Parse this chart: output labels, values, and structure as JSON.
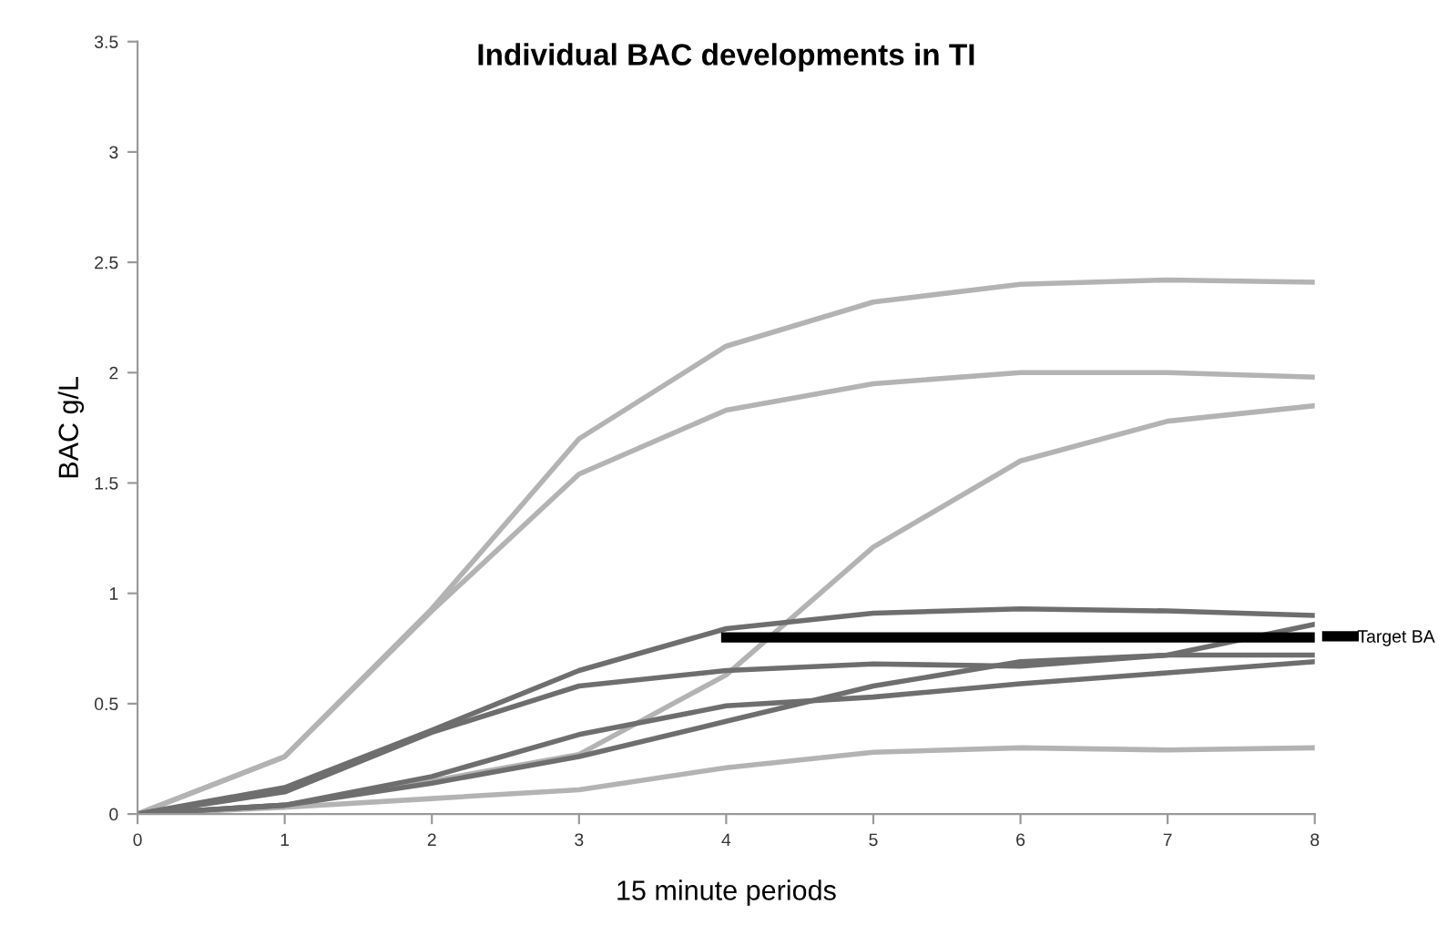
{
  "chart_data": {
    "type": "line",
    "title": "Individual BAC developments in TI",
    "xlabel": "15 minute periods",
    "ylabel": "BAC g/L",
    "x": [
      0,
      1,
      2,
      3,
      4,
      5,
      6,
      7,
      8
    ],
    "series": [
      {
        "color": "#b3b3b3",
        "values": [
          0,
          0.26,
          0.93,
          1.7,
          2.12,
          2.32,
          2.4,
          2.42,
          2.41
        ]
      },
      {
        "color": "#b3b3b3",
        "values": [
          0,
          0.26,
          0.92,
          1.54,
          1.83,
          1.95,
          2.0,
          2.0,
          1.98
        ]
      },
      {
        "color": "#b3b3b3",
        "values": [
          0,
          0.04,
          0.15,
          0.27,
          0.63,
          1.21,
          1.6,
          1.78,
          1.85
        ]
      },
      {
        "color": "#b3b3b3",
        "values": [
          0,
          0.03,
          0.07,
          0.11,
          0.21,
          0.28,
          0.3,
          0.29,
          0.3
        ]
      },
      {
        "color": "#6e6e6e",
        "values": [
          0,
          0.12,
          0.38,
          0.65,
          0.84,
          0.91,
          0.93,
          0.92,
          0.9
        ]
      },
      {
        "color": "#6e6e6e",
        "values": [
          0,
          0.1,
          0.37,
          0.58,
          0.65,
          0.68,
          0.67,
          0.72,
          0.72
        ]
      },
      {
        "color": "#6e6e6e",
        "values": [
          0,
          0.04,
          0.17,
          0.36,
          0.49,
          0.53,
          0.59,
          0.64,
          0.69
        ]
      },
      {
        "color": "#6e6e6e",
        "values": [
          0,
          0.04,
          0.14,
          0.26,
          0.42,
          0.58,
          0.69,
          0.72,
          0.86
        ]
      },
      {
        "name": "Target BA",
        "color": "#000000",
        "x": [
          4,
          8
        ],
        "values": [
          0.8,
          0.8
        ]
      }
    ],
    "xlim": [
      0,
      8
    ],
    "xticks": [
      0,
      1,
      2,
      3,
      4,
      5,
      6,
      7,
      8
    ],
    "ylim": [
      0,
      3.5
    ],
    "yticks": [
      0,
      0.5,
      1,
      1.5,
      2,
      2.5,
      3,
      3.5
    ],
    "grid": false,
    "legend": "right",
    "marker": "none",
    "line_style": "solid"
  }
}
